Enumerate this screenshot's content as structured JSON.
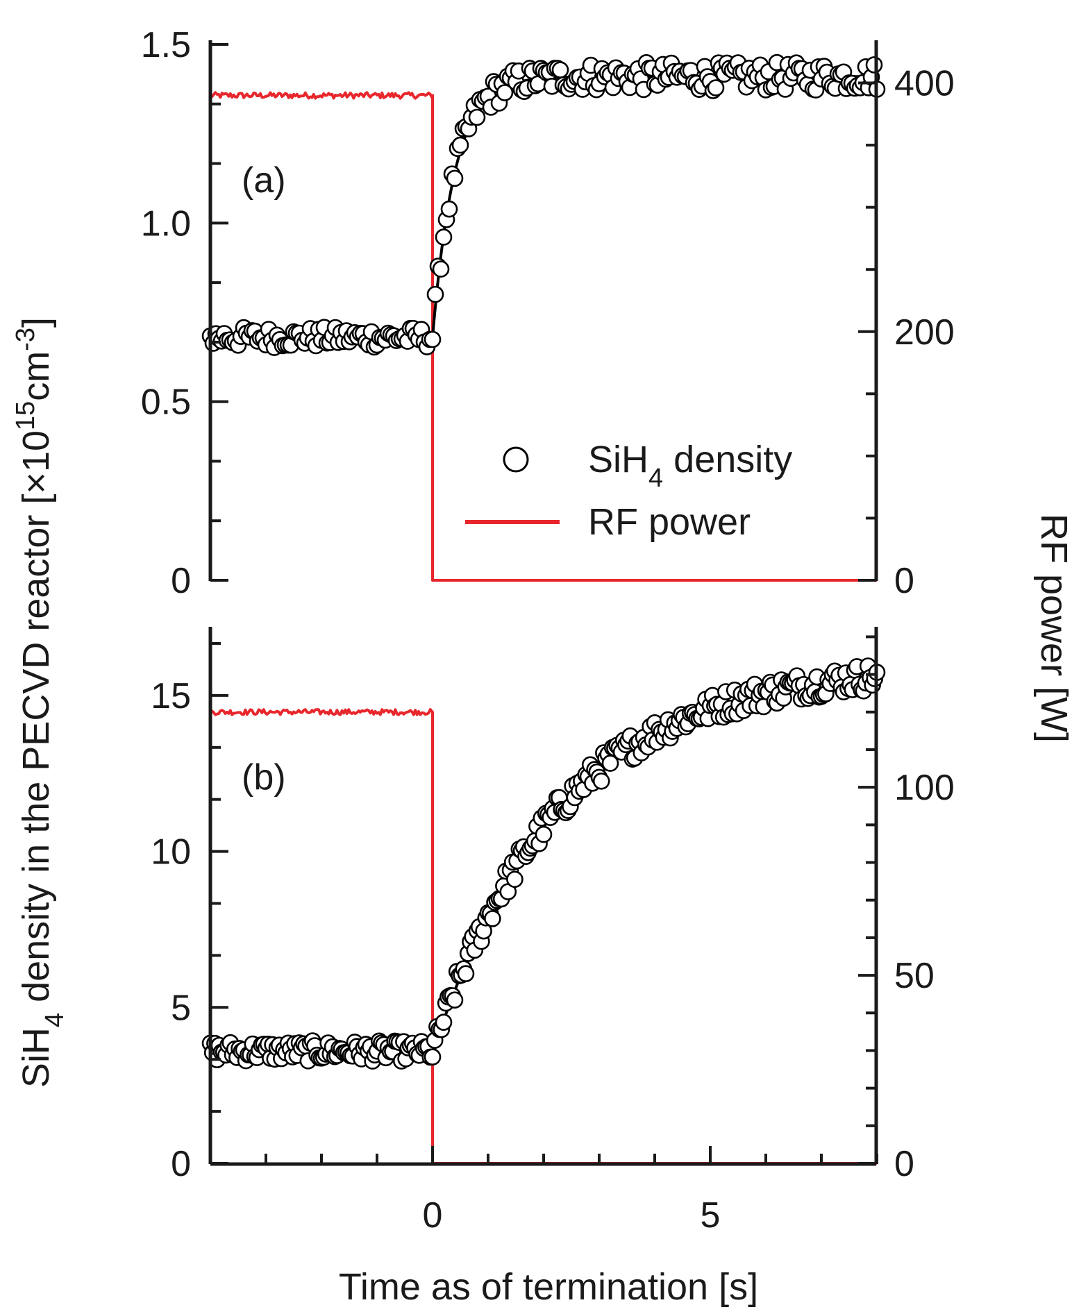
{
  "chart_data": {
    "type": "scatter",
    "colors": {
      "density": "#000000",
      "fit": "#000000",
      "rf": "#e8272d"
    },
    "xlabel": "Time as of termination [s]",
    "xlim": [
      -4,
      8
    ],
    "xticks": [
      "0",
      "5"
    ],
    "ylabel": {
      "prefix": "SiH",
      "sub": "4",
      "mid": " density in the PECVD reactor [×10",
      "sup1": "15",
      "unit": "cm",
      "sup2": "-3",
      "end": "]"
    },
    "y2label": "RF power [W]",
    "legend": {
      "density": {
        "prefix": "SiH",
        "sub": "4",
        "suffix": " density"
      },
      "rf": "RF power"
    },
    "panels": [
      {
        "label": "(a)",
        "ylim": [
          0,
          1.5
        ],
        "y2lim": [
          0,
          431
        ],
        "yticks": [
          {
            "value": 0,
            "label": "0"
          },
          {
            "value": 0.5,
            "label": "0.5"
          },
          {
            "value": 1.0,
            "label": "1.0"
          },
          {
            "value": 1.5,
            "label": "1.5"
          }
        ],
        "y2ticks": [
          {
            "value": 0,
            "label": "0"
          },
          {
            "value": 200,
            "label": "200"
          },
          {
            "value": 400,
            "label": "400"
          }
        ],
        "series": [
          {
            "name": "SiH4 density (before termination)",
            "t_range": [
              -4,
              0
            ],
            "baseline": 0.68
          },
          {
            "name": "SiH4 density (after termination)",
            "t_range": [
              0,
              8
            ],
            "start": 0.68,
            "plateau": 1.41,
            "tau_s": 0.4
          },
          {
            "name": "RF power",
            "on_level_W": 390,
            "off_level_W": 0,
            "off_at_s": 0
          }
        ]
      },
      {
        "label": "(b)",
        "ylim": [
          0,
          17
        ],
        "y2lim": [
          0,
          141
        ],
        "yticks": [
          {
            "value": 0,
            "label": "0"
          },
          {
            "value": 5,
            "label": "5"
          },
          {
            "value": 10,
            "label": "10"
          },
          {
            "value": 15,
            "label": "15"
          }
        ],
        "y2ticks": [
          {
            "value": 0,
            "label": "0"
          },
          {
            "value": 50,
            "label": "50"
          },
          {
            "value": 100,
            "label": "100"
          }
        ],
        "series": [
          {
            "name": "SiH4 density (before termination)",
            "t_range": [
              -4,
              0
            ],
            "baseline": 3.6
          },
          {
            "name": "SiH4 density (after termination)",
            "t_range": [
              0,
              8
            ],
            "start": 3.55,
            "plateau": 16.0,
            "tau_s": 2.3
          },
          {
            "name": "RF power",
            "on_level_W": 120,
            "off_level_W": 0,
            "off_at_s": 0
          }
        ]
      }
    ]
  }
}
